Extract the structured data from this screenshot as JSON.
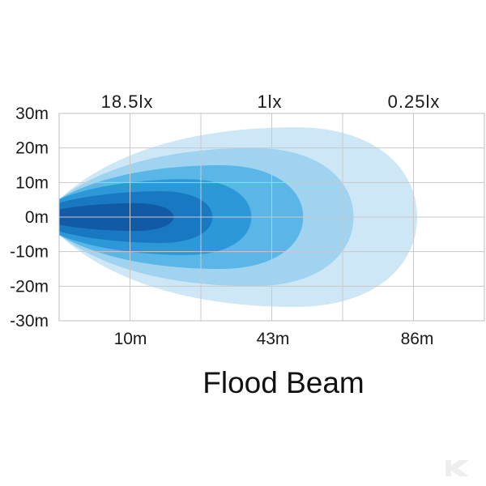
{
  "chart_data": {
    "type": "area",
    "title": "Flood Beam",
    "xlabel": "",
    "ylabel": "",
    "grid": true,
    "ylim": [
      -30,
      30
    ],
    "y_ticks": [
      {
        "label": "30m",
        "value": 30
      },
      {
        "label": "20m",
        "value": 20
      },
      {
        "label": "10m",
        "value": 10
      },
      {
        "label": "0m",
        "value": 0
      },
      {
        "label": "-10m",
        "value": -10
      },
      {
        "label": "-20m",
        "value": -20
      },
      {
        "label": "-30m",
        "value": -30
      }
    ],
    "x_ticks": [
      {
        "label": "10m",
        "value": 10
      },
      {
        "label": "43m",
        "value": 43
      },
      {
        "label": "86m",
        "value": 86
      }
    ],
    "lux_labels": [
      {
        "label": "18.5lx",
        "value": 10
      },
      {
        "label": "1lx",
        "value": 43
      },
      {
        "label": "0.25lx",
        "value": 86
      }
    ],
    "series": [
      {
        "reach": 86,
        "half_width": 26,
        "color": "#cde7f6"
      },
      {
        "reach": 67,
        "half_width": 20,
        "color": "#9fd3f0"
      },
      {
        "reach": 52,
        "half_width": 15,
        "color": "#59b6e6"
      },
      {
        "reach": 38,
        "half_width": 11,
        "color": "#2d98d8"
      },
      {
        "reach": 29,
        "half_width": 7.5,
        "color": "#1878c2"
      },
      {
        "reach": 20,
        "half_width": 4,
        "color": "#1259a6"
      }
    ]
  }
}
